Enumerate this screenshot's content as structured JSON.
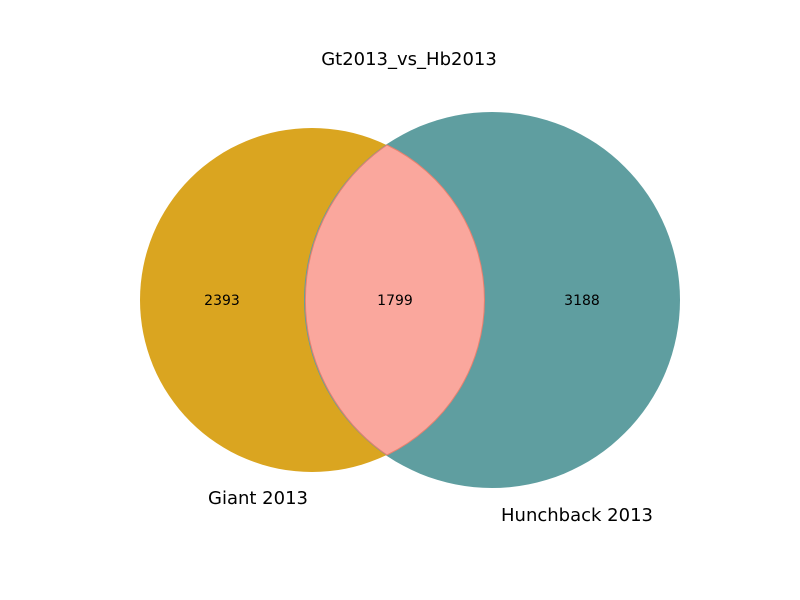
{
  "chart_data": {
    "type": "venn",
    "title": "Gt2013_vs_Hb2013",
    "sets": [
      {
        "name": "Giant 2013",
        "only": 2393,
        "color": "#DAA520"
      },
      {
        "name": "Hunchback 2013",
        "only": 3188,
        "color": "#5F9EA0"
      }
    ],
    "intersection": {
      "value": 1799,
      "color": "#FAA79D",
      "edge_color": "#E9806E"
    },
    "grid": false,
    "legend": "none"
  }
}
